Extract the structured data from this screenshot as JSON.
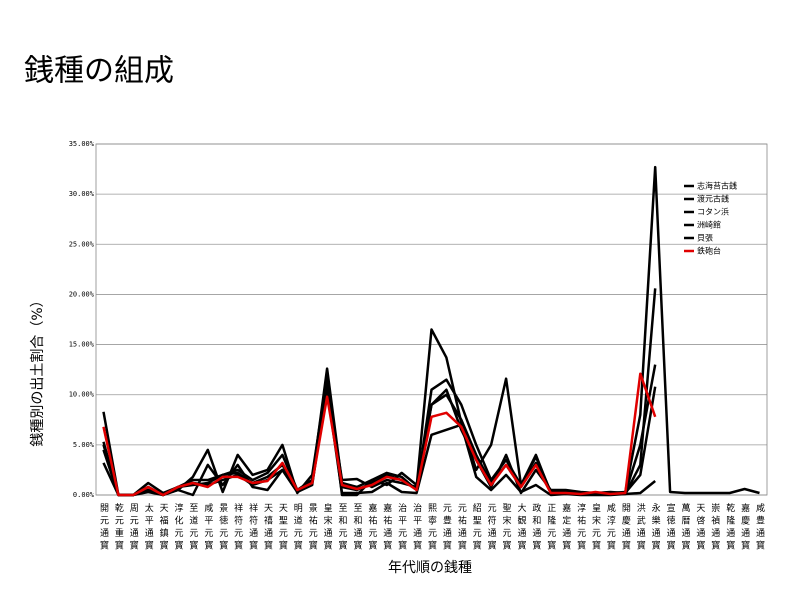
{
  "chart_data": {
    "type": "line",
    "title": "銭種の組成",
    "x_label": "年代順の銭種",
    "y_label": "銭種別の出土割合（%）",
    "categories": [
      "開元通寳",
      "乾元重寳",
      "周元通寳",
      "太平通寳",
      "天福鎮寳",
      "淳化元寳",
      "至道元寳",
      "咸平元寳",
      "景徳元寳",
      "祥符元寳",
      "祥符通寳",
      "天禧通寳",
      "天聖元寳",
      "明道元寳",
      "景祐元寳",
      "皇宋通寳",
      "至和元寳",
      "至和通寳",
      "嘉祐元寳",
      "嘉祐通寳",
      "治平元寳",
      "治平通寳",
      "熙寧元寳",
      "元豊通寳",
      "元祐通寳",
      "紹聖元寳",
      "元符通寳",
      "聖宋元寳",
      "大観通寳",
      "政和通寳",
      "正隆元寳",
      "嘉定通寳",
      "淳祐元寳",
      "皇宋元寳",
      "咸淳元寳",
      "開慶通寳",
      "洪武通寳",
      "永樂通寳",
      "宣徳通寳",
      "萬暦通寳",
      "天啓通寳",
      "崇禎通寳",
      "乾隆通寳",
      "嘉慶通寳",
      "咸豊通寳"
    ],
    "ylim": [
      0,
      35
    ],
    "yticks": [
      {
        "value": 0,
        "label": "0.00%"
      },
      {
        "value": 5,
        "label": "5.00%"
      },
      {
        "value": 10,
        "label": "10.00%"
      },
      {
        "value": 15,
        "label": "15.00%"
      },
      {
        "value": 20,
        "label": "20.00%"
      },
      {
        "value": 25,
        "label": "25.00%"
      },
      {
        "value": 30,
        "label": "30.00%"
      },
      {
        "value": 35,
        "label": "35.00%"
      }
    ],
    "grid": true,
    "series": [
      {
        "name": "志海苔古銭",
        "color": "#000000",
        "values": [
          8.3,
          0,
          0,
          1.2,
          0.2,
          0.8,
          1.5,
          1.5,
          2.0,
          2.5,
          1.5,
          2.2,
          4.0,
          0.5,
          1.5,
          12.6,
          1.2,
          0.8,
          1.5,
          2.2,
          1.8,
          0.5,
          10.5,
          11.5,
          9.0,
          5.0,
          1.5,
          3.5,
          1.0,
          3.8,
          0.3,
          0.3,
          0.2,
          0.2,
          0.2,
          0.3,
          8.0,
          32.7,
          0.3,
          0.2,
          0.2,
          0.2,
          0.2,
          0.6,
          0.2
        ]
      },
      {
        "name": "渡元古銭",
        "color": "#000000",
        "values": [
          5.3,
          0,
          0,
          0.5,
          0,
          0.8,
          1.2,
          1.0,
          1.5,
          2.0,
          1.0,
          1.5,
          2.5,
          0.3,
          1.0,
          11.0,
          1.5,
          1.6,
          0.8,
          1.5,
          1.2,
          0.8,
          16.5,
          13.7,
          7.2,
          2.5,
          5.0,
          11.6,
          1.0,
          4.0,
          0.2,
          0.2,
          0.1,
          0.1,
          0.1,
          0.1,
          3.0,
          20.6,
          null,
          null,
          null,
          null,
          null,
          null,
          null
        ]
      },
      {
        "name": "コタン浜",
        "color": "#000000",
        "values": [
          3.2,
          0,
          0,
          0.8,
          0,
          0.5,
          1.8,
          4.5,
          0.3,
          4.0,
          2.0,
          2.5,
          5.0,
          0.2,
          2.0,
          11.8,
          0,
          0,
          1.5,
          1.0,
          2.2,
          1.0,
          9.0,
          10.5,
          6.5,
          3.5,
          0.8,
          4.0,
          0.2,
          2.5,
          0.5,
          0.5,
          0.3,
          0.2,
          0.3,
          0.2,
          2.0,
          10.8,
          null,
          null,
          null,
          null,
          null,
          null,
          null
        ]
      },
      {
        "name": "洲崎館",
        "color": "#000000",
        "values": [
          5.0,
          0,
          0,
          0.3,
          0,
          0.5,
          0,
          3.0,
          1.0,
          3.0,
          0.8,
          0.5,
          2.5,
          0.3,
          1.2,
          10.5,
          0.2,
          0.2,
          0.3,
          1.2,
          0.3,
          0.2,
          6.0,
          6.5,
          7.0,
          1.8,
          0.5,
          2.0,
          0.3,
          1.0,
          0,
          0.1,
          0,
          0,
          0,
          0.1,
          0.2,
          1.4,
          null,
          null,
          null,
          null,
          null,
          null,
          null
        ]
      },
      {
        "name": "貝張",
        "color": "#000000",
        "values": [
          4.5,
          0,
          0,
          0.5,
          0,
          0.8,
          1.0,
          1.2,
          2.0,
          2.2,
          1.2,
          1.8,
          3.0,
          0.5,
          1.5,
          12.0,
          0.8,
          0.5,
          1.2,
          2.0,
          1.5,
          0.6,
          9.0,
          10.0,
          7.5,
          4.0,
          1.2,
          3.0,
          0.8,
          3.2,
          0.2,
          0.2,
          0.1,
          0.2,
          0.1,
          0.2,
          5.0,
          13.0,
          null,
          null,
          null,
          null,
          null,
          null,
          null
        ]
      },
      {
        "name": "鉄砲台",
        "color": "#e00000",
        "values": [
          6.8,
          0,
          0,
          0.8,
          0,
          0.8,
          1.2,
          0.8,
          1.8,
          1.8,
          1.2,
          1.4,
          3.2,
          0.5,
          1.2,
          9.8,
          1.0,
          0.6,
          1.0,
          1.8,
          1.5,
          0.5,
          7.8,
          8.2,
          6.8,
          3.5,
          1.0,
          3.0,
          0.8,
          3.0,
          0.2,
          0.2,
          0.1,
          0.3,
          0.1,
          0.2,
          12.1,
          7.8,
          null,
          null,
          null,
          null,
          null,
          null,
          null
        ]
      }
    ]
  }
}
